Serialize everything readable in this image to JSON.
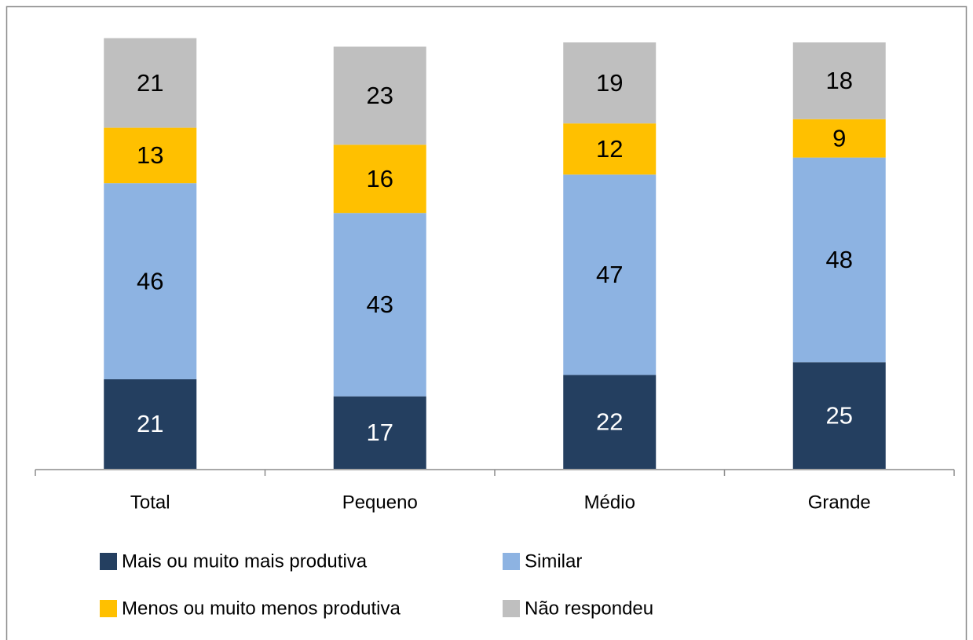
{
  "chart_data": {
    "type": "stacked_bar",
    "categories": [
      "Total",
      "Pequeno",
      "Médio",
      "Grande"
    ],
    "series": [
      {
        "name": "Mais ou muito mais produtiva",
        "color": "#243f60",
        "label_color": "#ffffff",
        "values": [
          21,
          17,
          22,
          25
        ]
      },
      {
        "name": "Similar",
        "color": "#8db3e2",
        "label_color": "#000000",
        "values": [
          46,
          43,
          47,
          48
        ]
      },
      {
        "name": "Menos ou muito menos produtiva",
        "color": "#ffc000",
        "label_color": "#000000",
        "values": [
          13,
          16,
          12,
          9
        ]
      },
      {
        "name": "Não respondeu",
        "color": "#bfbfbf",
        "label_color": "#000000",
        "values": [
          21,
          23,
          19,
          18
        ]
      }
    ],
    "ylim": [
      0,
      100
    ]
  }
}
